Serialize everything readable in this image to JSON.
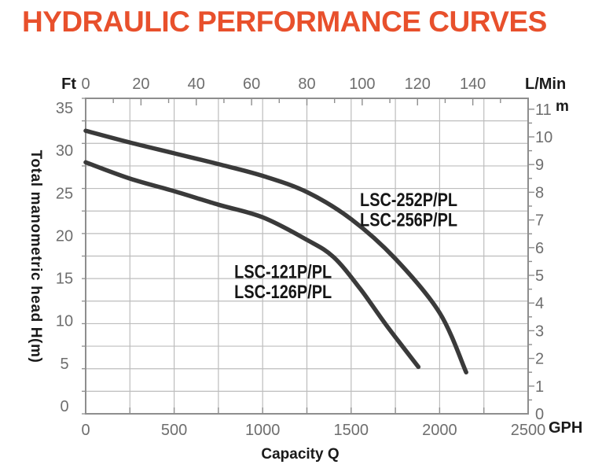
{
  "title": "HYDRAULIC PERFORMANCE CURVES",
  "colors": {
    "title": "#E8502C",
    "curve": "#3A3A3A",
    "curve_label": "#161616",
    "grid": "#BDBDBD",
    "border": "#8E8E8E",
    "tick_label": "#6E6E6E",
    "axis_title": "#1A1A1A"
  },
  "chart_data": {
    "type": "line",
    "title": "HYDRAULIC PERFORMANCE CURVES",
    "head_units": "ft",
    "grid": "on",
    "axes": {
      "bottom": {
        "unit": "GPH",
        "title": "Capacity Q",
        "min": 0,
        "max": 2500,
        "major_ticks": [
          0,
          500,
          1000,
          1500,
          2000,
          2500
        ],
        "minor_step": 250
      },
      "top": {
        "unit": "L/Min",
        "min": 0,
        "max": 160,
        "labeled_ticks": [
          0,
          20,
          40,
          60,
          80,
          100,
          120,
          140
        ],
        "minor_step": 10
      },
      "left": {
        "unit": "Ft",
        "title": "Total manometric head H(m)",
        "min": 0,
        "max": 35,
        "labeled_ticks": [
          35,
          30,
          25,
          20,
          15,
          10,
          5,
          0
        ],
        "grid_step": 2.5
      },
      "right": {
        "unit": "m",
        "min": 0,
        "max": 11,
        "labeled_ticks": [
          11,
          10,
          9,
          8,
          7,
          6,
          5,
          4,
          3,
          2,
          1,
          0
        ],
        "minor_step": 0.5
      }
    },
    "series": [
      {
        "name": "LSC-252P/PL / LSC-256P/PL",
        "label_lines": [
          "LSC-252P/PL",
          "LSC-256P/PL"
        ],
        "gph": [
          0,
          250,
          500,
          750,
          1000,
          1250,
          1500,
          1750,
          2000,
          2150
        ],
        "head_ft": [
          31.4,
          30.1,
          28.9,
          27.7,
          26.4,
          24.6,
          21.6,
          17.2,
          11.2,
          4.6
        ],
        "label_anchor_gph_ft": [
          1550,
          23.8
        ]
      },
      {
        "name": "LSC-121P/PL / LSC-126P/PL",
        "label_lines": [
          "LSC-121P/PL",
          "LSC-126P/PL"
        ],
        "gph": [
          0,
          250,
          500,
          750,
          1000,
          1250,
          1400,
          1550,
          1700,
          1880
        ],
        "head_ft": [
          27.9,
          26.1,
          24.7,
          23.2,
          21.8,
          19.3,
          17.4,
          13.9,
          9.8,
          5.2
        ],
        "label_anchor_gph_ft": [
          840,
          15.8
        ]
      }
    ]
  }
}
